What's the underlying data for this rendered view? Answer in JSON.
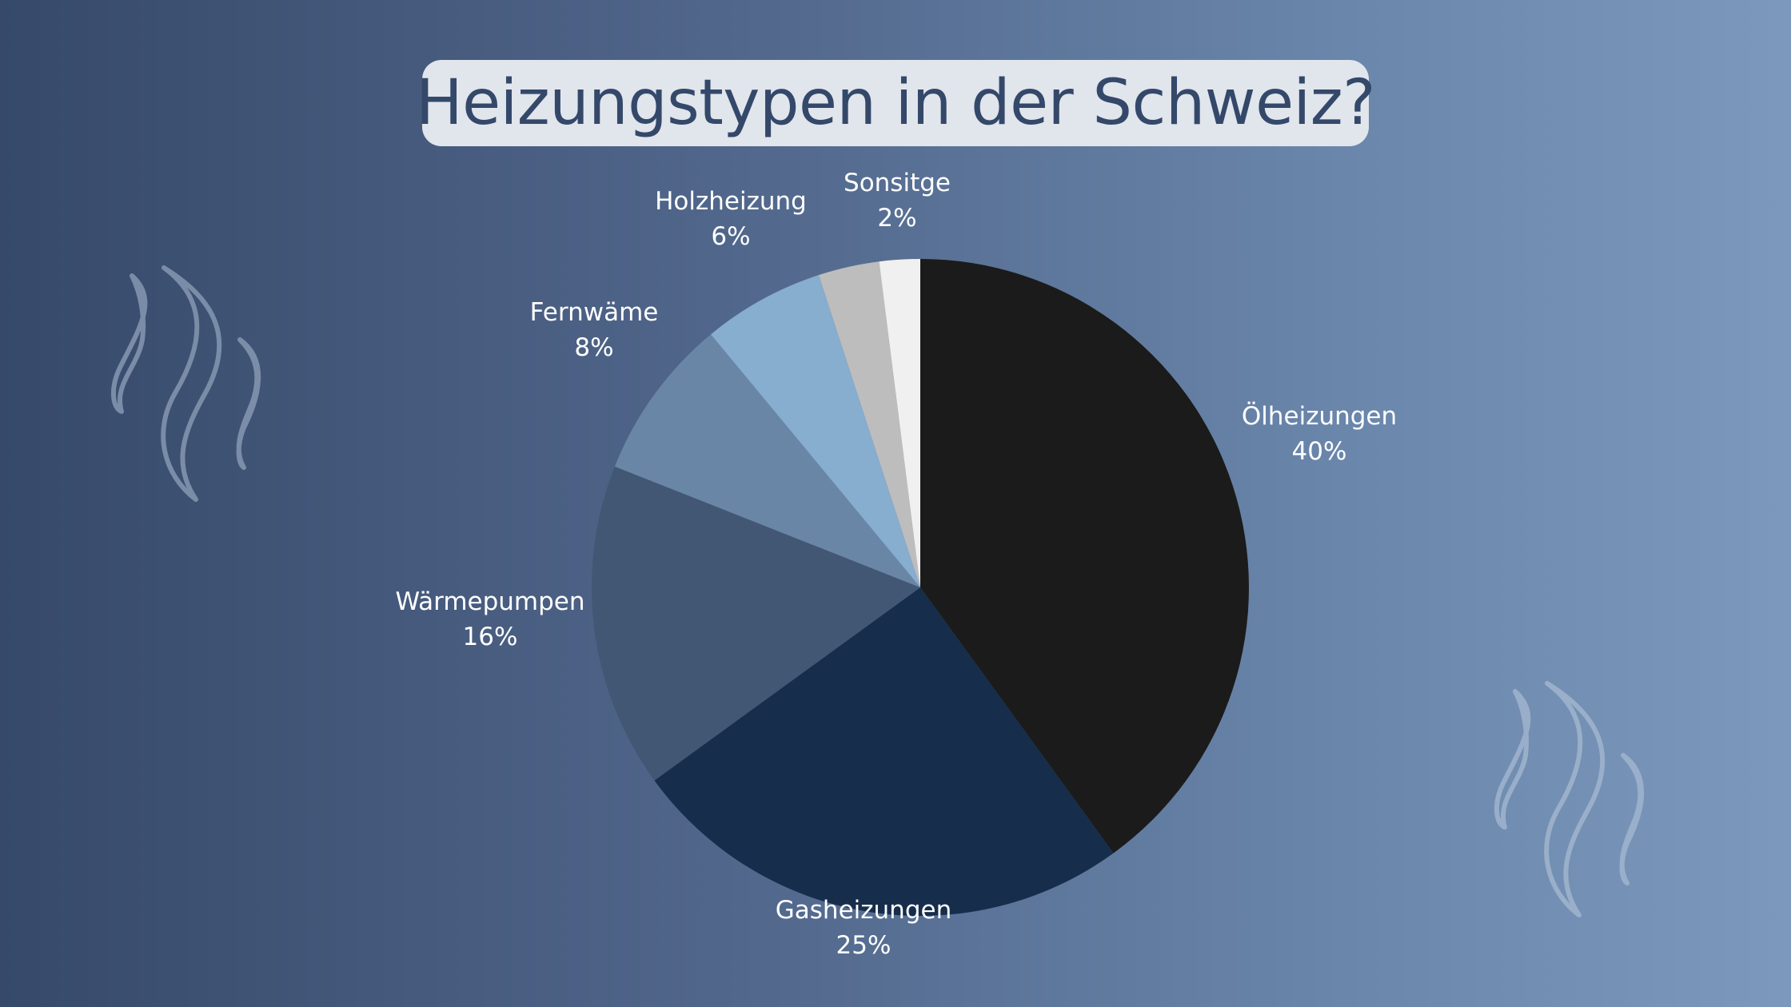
{
  "title": "Heizungstypen in der Schweiz?",
  "colors": {
    "title_text": "#34486a",
    "title_bg": "#e1e5ec",
    "label_text": "#ffffff",
    "steam_stroke": "#8a9cb5"
  },
  "chart_data": {
    "type": "pie",
    "title": "Heizungstypen in der Schweiz?",
    "start": "top, clockwise",
    "slices": [
      {
        "label": "Ölheizungen",
        "value": 40,
        "value_label": "40%",
        "color": "#1b1b1b"
      },
      {
        "label": "Gasheizungen",
        "value": 25,
        "value_label": "25%",
        "color": "#172d4c"
      },
      {
        "label": "Wärmepumpen",
        "value": 16,
        "value_label": "16%",
        "color": "#425773"
      },
      {
        "label": "Fernwäme",
        "value": 8,
        "value_label": "8%",
        "color": "#6a86a7"
      },
      {
        "label": "Holzheizung",
        "value": 6,
        "value_label": "6%",
        "color": "#87adcf"
      },
      {
        "label": "",
        "value": 3,
        "value_label": "",
        "color": "#bdbdbd"
      },
      {
        "label": "Sonsitge",
        "value": 2,
        "value_label": "2%",
        "color": "#f0f0f0"
      }
    ]
  },
  "decorations": [
    {
      "name": "steam-icon-left"
    },
    {
      "name": "steam-icon-right"
    }
  ]
}
